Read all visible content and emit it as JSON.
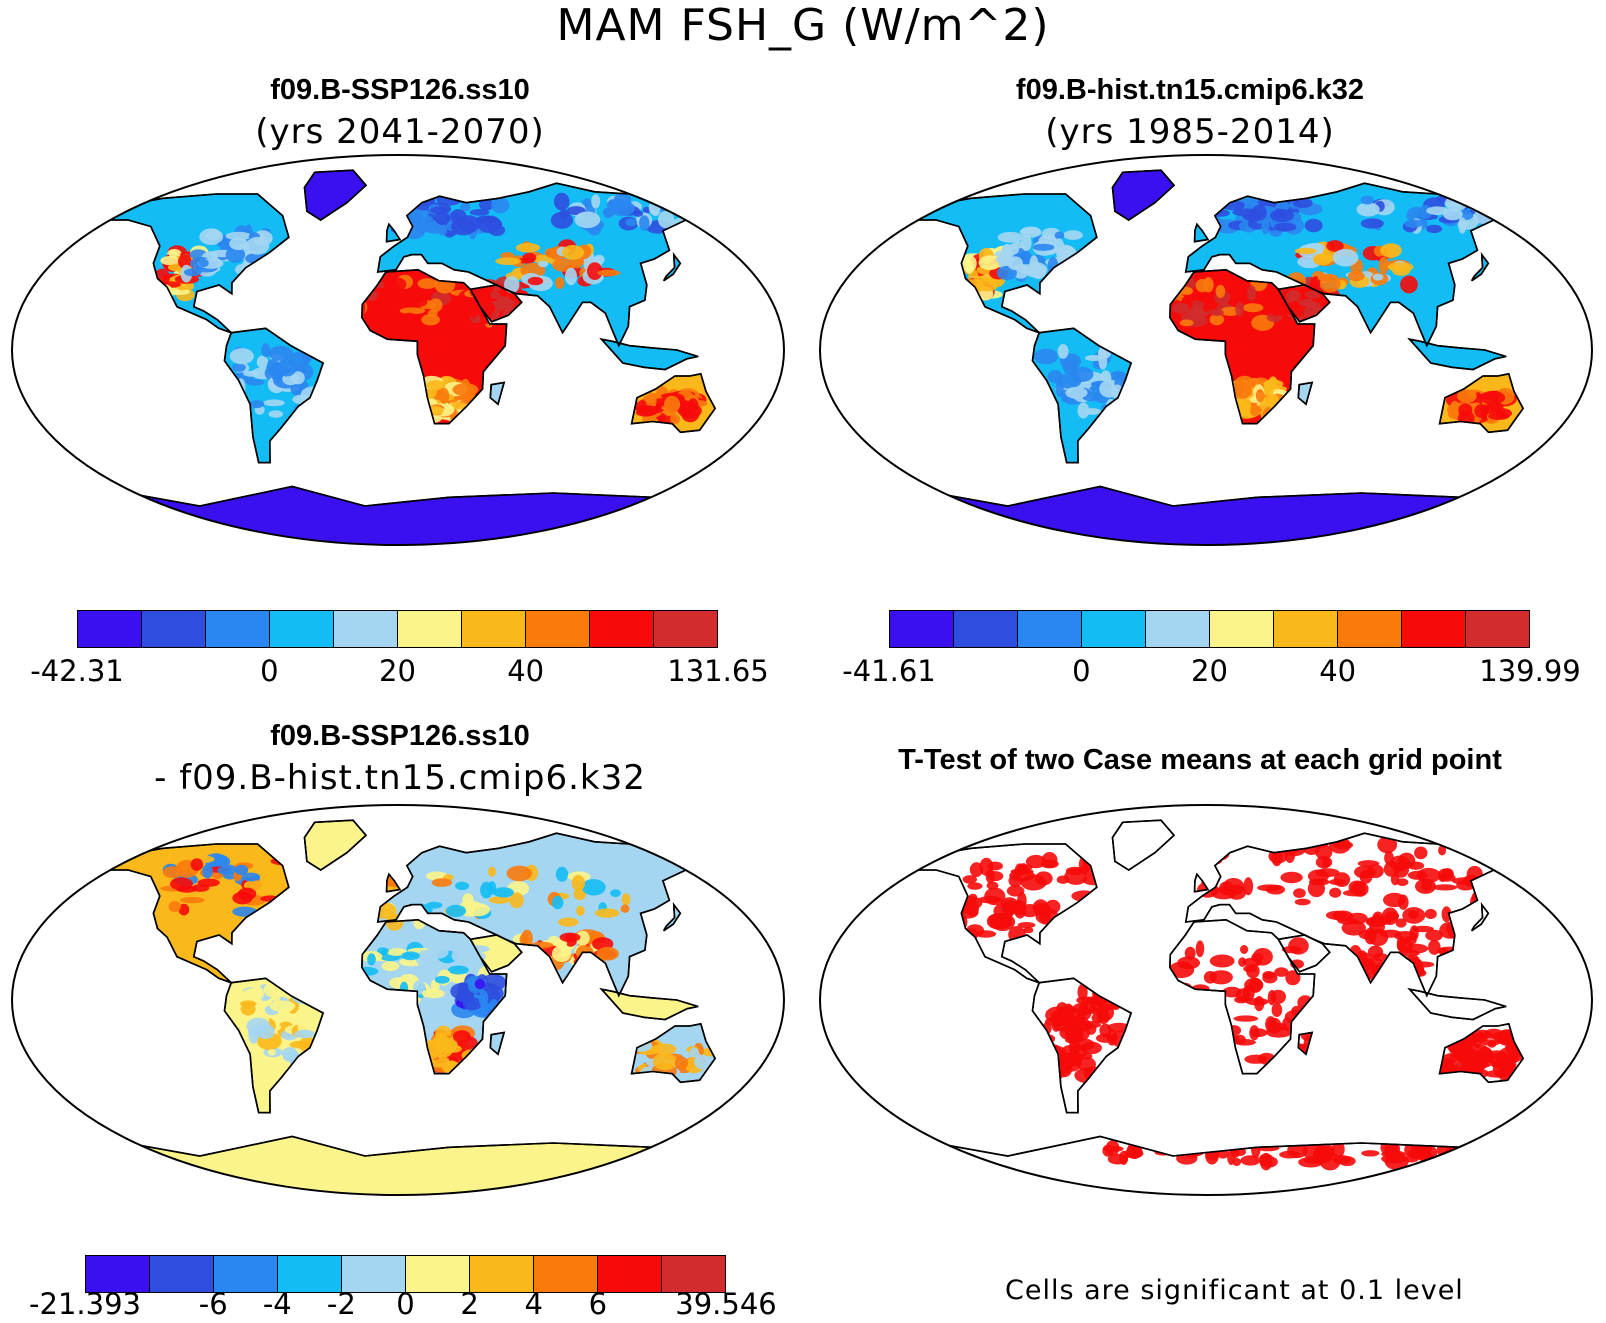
{
  "figure": {
    "title": "MAM FSH_G (W/m^2)"
  },
  "palette": [
    "#3a10f0",
    "#2e4ee0",
    "#2a86f0",
    "#14bcf5",
    "#a4d6f2",
    "#fbf48a",
    "#fbb81a",
    "#fa7a0c",
    "#f60a0a",
    "#d22c2c"
  ],
  "panels": {
    "top_left": {
      "title": "f09.B-SSP126.ss10",
      "subtitle": "(yrs 2041-2070)",
      "colorbar": {
        "labels": [
          "-42.31",
          "0",
          "20",
          "40",
          "131.65"
        ],
        "label_boundaries": [
          0,
          3,
          5,
          7,
          10
        ]
      }
    },
    "top_right": {
      "title": "f09.B-hist.tn15.cmip6.k32",
      "subtitle": "(yrs 1985-2014)",
      "colorbar": {
        "labels": [
          "-41.61",
          "0",
          "20",
          "40",
          "139.99"
        ],
        "label_boundaries": [
          0,
          3,
          5,
          7,
          10
        ]
      }
    },
    "bottom_left": {
      "title": "f09.B-SSP126.ss10",
      "subtitle": "- f09.B-hist.tn15.cmip6.k32",
      "colorbar": {
        "labels": [
          "-21.393",
          "-6",
          "-4",
          "-2",
          "0",
          "2",
          "4",
          "6",
          "39.546"
        ],
        "label_boundaries": [
          0,
          2,
          3,
          4,
          5,
          6,
          7,
          8,
          10
        ]
      }
    },
    "bottom_right": {
      "title": "T-Test of two Case means at each grid point",
      "note": "Cells are significant at 0.1 level",
      "significant_color": "#f60a0a"
    }
  }
}
